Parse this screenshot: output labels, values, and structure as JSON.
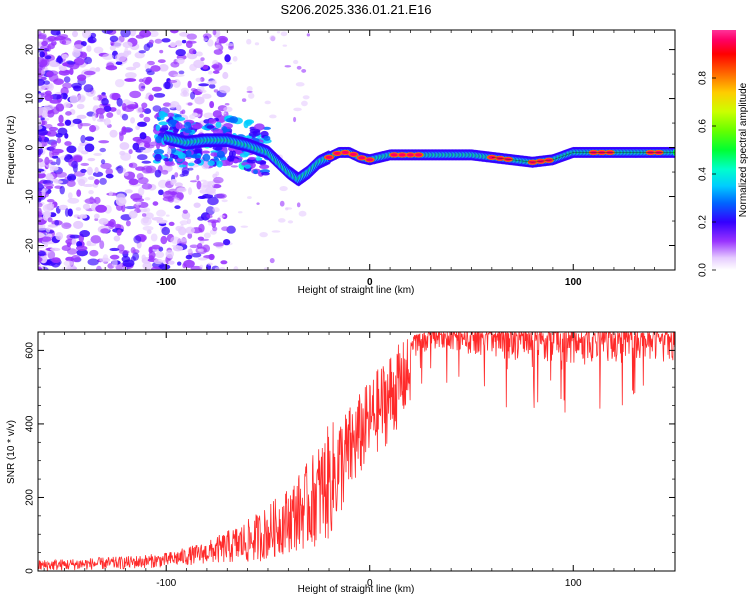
{
  "title": "S206.2025.336.01.21.E16",
  "chart_data": [
    {
      "type": "heatmap",
      "xlabel": "Height of straight line (km)",
      "ylabel": "Frequency (Hz)",
      "xlim": [
        -163,
        150
      ],
      "ylim": [
        -25,
        24
      ],
      "xticks": [
        -100,
        0,
        100
      ],
      "yticks": [
        20,
        10,
        0,
        -10,
        -20
      ],
      "colorbar": {
        "label": "Normalized spectral amplitude",
        "range": [
          0,
          1
        ],
        "ticks": [
          "0.0",
          "0.2",
          "0.4",
          "0.6",
          "0.8"
        ],
        "tick_values": [
          0,
          0.2,
          0.4,
          0.6,
          0.8
        ],
        "colormap": [
          "#ffffff",
          "#e6ccff",
          "#9933ff",
          "#3300ff",
          "#0066ff",
          "#00ccff",
          "#00ffcc",
          "#00ff33",
          "#66ff00",
          "#ccff00",
          "#ffcc00",
          "#ff6600",
          "#ff0000",
          "#ff0066",
          "#ff3399"
        ]
      },
      "ridge_frequency": {
        "x": [
          -100,
          -90,
          -80,
          -70,
          -60,
          -50,
          -40,
          -35,
          -30,
          -25,
          -20,
          -15,
          -10,
          -5,
          0,
          10,
          20,
          30,
          40,
          50,
          60,
          70,
          80,
          90,
          100,
          110,
          120,
          130,
          140,
          150
        ],
        "y": [
          2,
          1,
          1.5,
          1.5,
          0.5,
          -1,
          -5,
          -6.5,
          -5,
          -3,
          -2,
          -1,
          -1,
          -2,
          -2.5,
          -1.5,
          -1.5,
          -1.5,
          -1.5,
          -1.5,
          -2,
          -2.5,
          -3,
          -2.5,
          -1,
          -1,
          -1,
          -1,
          -1,
          -1
        ]
      }
    },
    {
      "type": "line",
      "xlabel": "Height of straight line (km)",
      "ylabel": "SNR (10 * v/v)",
      "xlim": [
        -163,
        150
      ],
      "ylim": [
        0,
        650
      ],
      "xticks": [
        -100,
        0,
        100
      ],
      "yticks": [
        0,
        200,
        400,
        600
      ],
      "color": "#ff2a2a",
      "series_envelope": {
        "x": [
          -163,
          -120,
          -100,
          -80,
          -60,
          -50,
          -40,
          -30,
          -20,
          -10,
          0,
          10,
          20,
          30,
          40,
          60,
          80,
          100,
          120,
          150
        ],
        "min": [
          0,
          5,
          10,
          20,
          20,
          30,
          50,
          60,
          80,
          200,
          300,
          350,
          450,
          520,
          500,
          450,
          420,
          400,
          410,
          420
        ],
        "max": [
          30,
          40,
          50,
          80,
          140,
          180,
          230,
          300,
          400,
          450,
          520,
          600,
          640,
          650,
          650,
          650,
          650,
          650,
          650,
          650
        ]
      }
    }
  ]
}
